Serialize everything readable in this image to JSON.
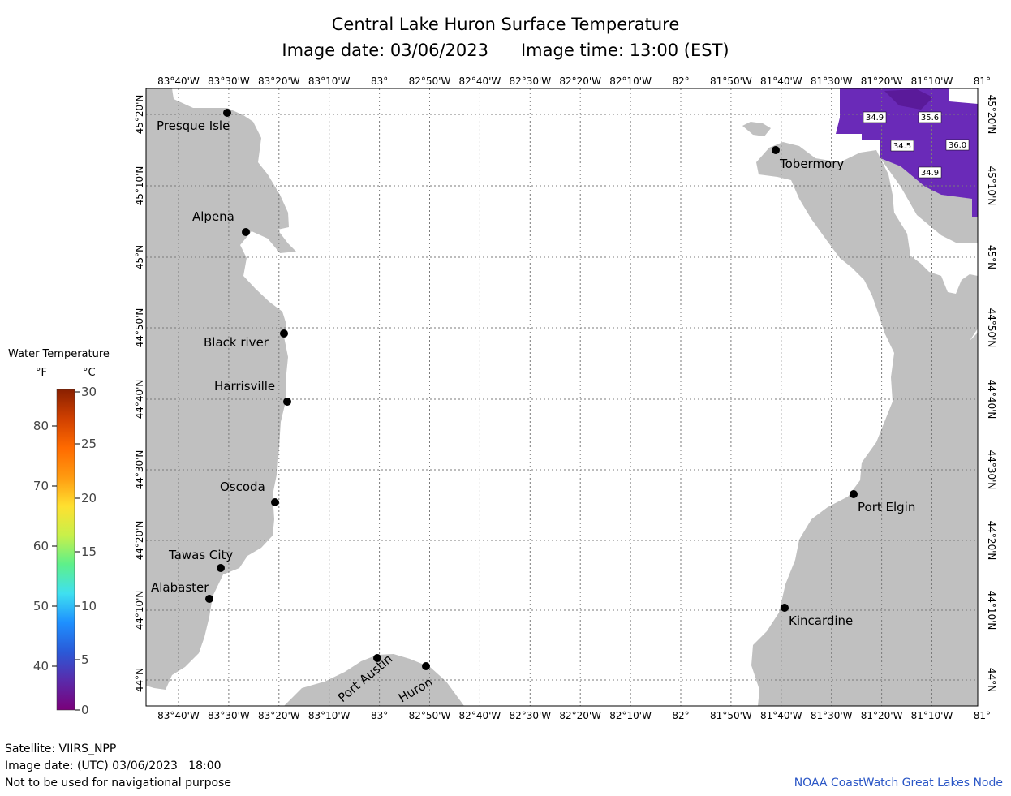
{
  "header": {
    "title": "Central Lake Huron Surface Temperature",
    "image_date": "Image date: 03/06/2023",
    "image_time": "Image time: 13:00 (EST)"
  },
  "footer": {
    "satellite": "Satellite: VIIRS_NPP",
    "utc_date": "Image date: (UTC) 03/06/2023   18:00",
    "disclaimer": "Not to be used for navigational purpose",
    "credit": "NOAA CoastWatch Great Lakes Node"
  },
  "legend": {
    "title": "Water Temperature",
    "unit_f": "°F",
    "unit_c": "°C",
    "f_ticks": [
      "40",
      "50",
      "60",
      "70",
      "80"
    ],
    "c_ticks": [
      "0",
      "5",
      "10",
      "15",
      "20",
      "25",
      "30"
    ],
    "colors": [
      "#7a007a",
      "#5a2aaa",
      "#2a5ad8",
      "#1e90ff",
      "#3fe0f0",
      "#5ef08a",
      "#c8f04a",
      "#ffe030",
      "#ff9a10",
      "#ff6a00",
      "#d04000",
      "#8a2000"
    ]
  },
  "axes": {
    "lon_labels": [
      "83°40'W",
      "83°30'W",
      "83°20'W",
      "83°10'W",
      "83°",
      "82°50'W",
      "82°40'W",
      "82°30'W",
      "82°20'W",
      "82°10'W",
      "82°",
      "81°50'W",
      "81°40'W",
      "81°30'W",
      "81°20'W",
      "81°10'W",
      "81°"
    ],
    "lat_labels": [
      "45°20'N",
      "45°10'N",
      "45°N",
      "44°50'N",
      "44°40'N",
      "44°30'N",
      "44°20'N",
      "44°10'N",
      "44°N"
    ]
  },
  "colors": {
    "land": "#c0c0c0",
    "grid": "#7a7a7a",
    "water_purple": "#6a2ab8",
    "water_dark": "#5a1a9a"
  },
  "places": [
    {
      "name": "Presque Isle"
    },
    {
      "name": "Alpena"
    },
    {
      "name": "Black river"
    },
    {
      "name": "Harrisville"
    },
    {
      "name": "Oscoda"
    },
    {
      "name": "Tawas City"
    },
    {
      "name": "Alabaster"
    },
    {
      "name": "Port Austin"
    },
    {
      "name": "Huron"
    },
    {
      "name": "Tobermory"
    },
    {
      "name": "Port Elgin"
    },
    {
      "name": "Kincardine"
    }
  ],
  "temperature_labels": [
    "34.9",
    "35.6",
    "34.5",
    "36.0",
    "34.9"
  ]
}
